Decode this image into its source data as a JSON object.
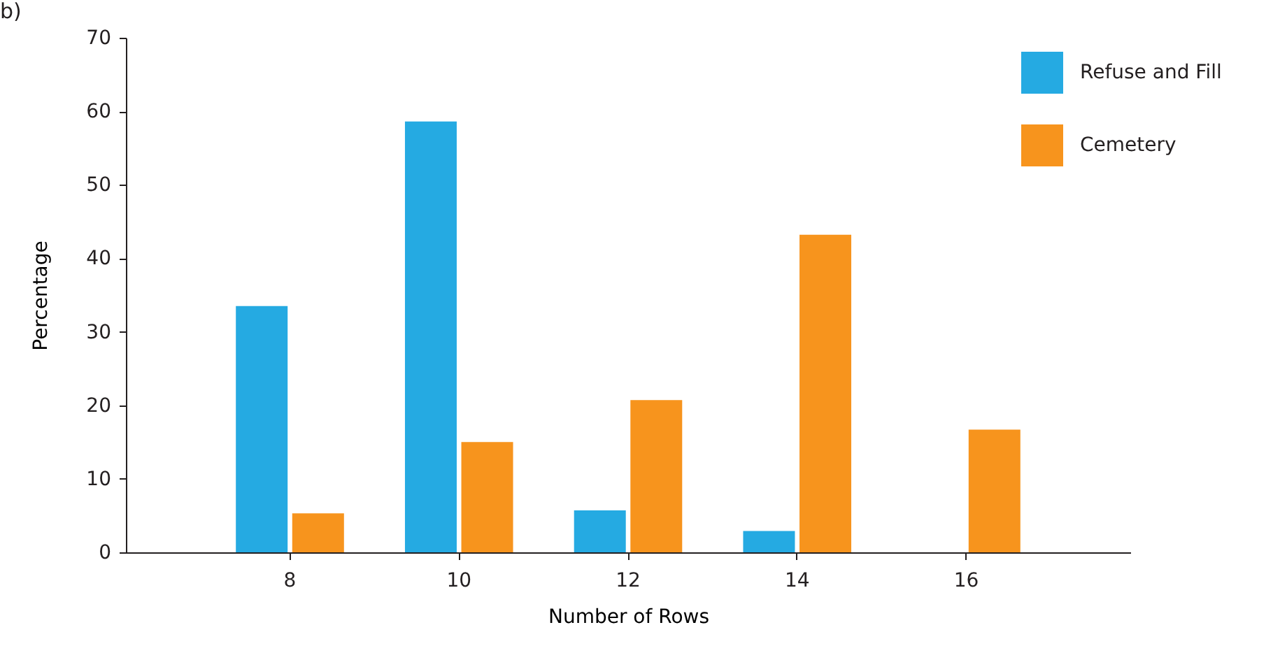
{
  "chart_data": {
    "type": "bar",
    "xlabel": "Number of Rows",
    "ylabel": "Percentage",
    "annotations": [
      "b)"
    ],
    "categories": [
      "8",
      "10",
      "12",
      "14",
      "16"
    ],
    "series": [
      {
        "name": "Refuse and Fill",
        "color": "#25aae2",
        "values": [
          33.5,
          58.6,
          5.7,
          2.9,
          0
        ]
      },
      {
        "name": "Cemetery",
        "color": "#f7941d",
        "values": [
          5.3,
          15.0,
          20.7,
          43.2,
          16.7
        ]
      }
    ],
    "ylim": [
      0,
      70
    ],
    "yticks": [
      0,
      10,
      20,
      30,
      40,
      50,
      60,
      70
    ],
    "grid": false,
    "legend": "top right"
  }
}
